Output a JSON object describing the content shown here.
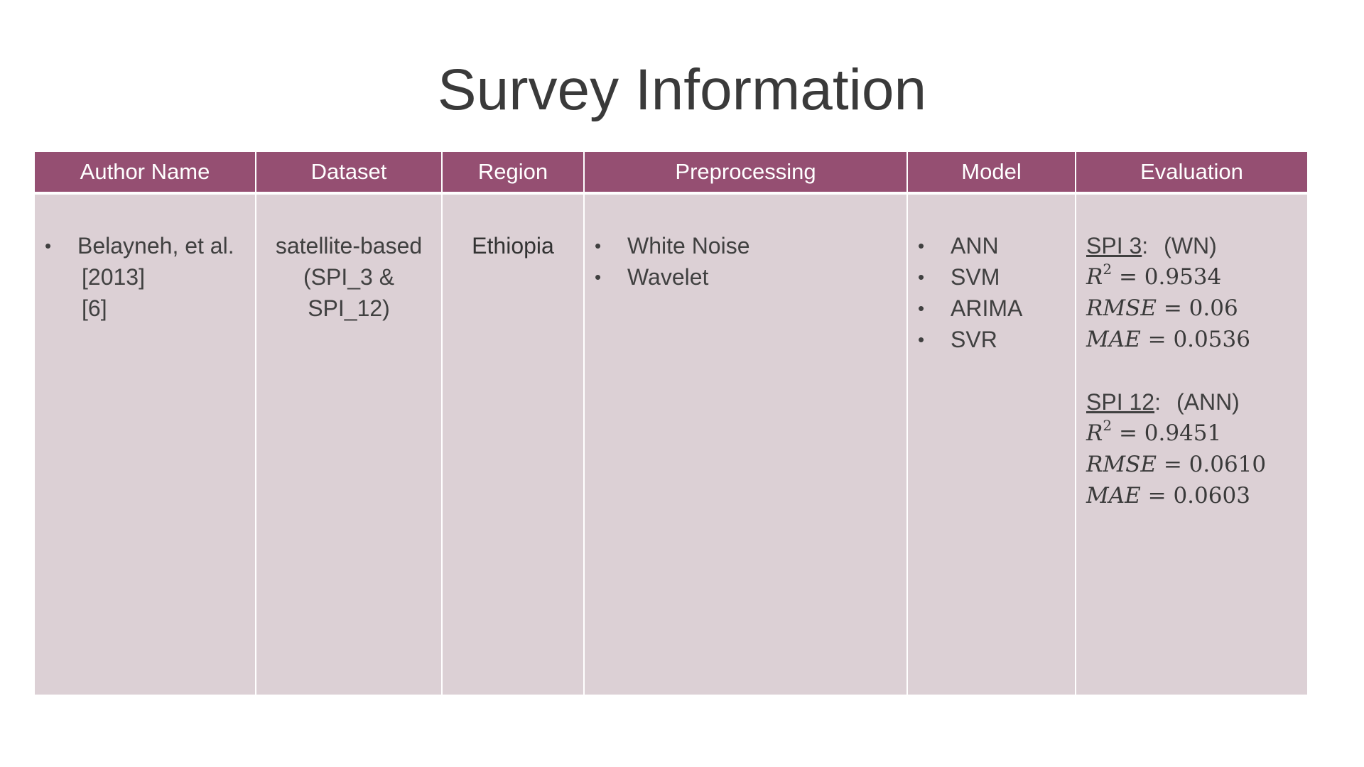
{
  "title": "Survey Information",
  "table": {
    "headers": [
      "Author Name",
      "Dataset",
      "Region",
      "Preprocessing",
      "Model",
      "Evaluation"
    ],
    "row": {
      "author": {
        "name": "Belayneh, et al.",
        "year": "[2013]",
        "ref": "[6]"
      },
      "dataset": [
        "satellite-based",
        "(SPI_3 &",
        "SPI_12)"
      ],
      "region": "Ethiopia",
      "preprocessing": [
        "White Noise",
        "Wavelet"
      ],
      "models": [
        "ANN",
        "SVM",
        "ARIMA",
        "SVR"
      ],
      "evaluation": [
        {
          "label": "SPI 3",
          "colon": ":",
          "method": "(WN)",
          "r2_var": "R",
          "r2_exp": "2",
          "r2_value": "= 0.9534",
          "rmse_var": "RMSE",
          "rmse_value": "= 0.06",
          "mae_var": "MAE",
          "mae_value": "= 0.0536"
        },
        {
          "label": "SPI 12",
          "colon": ":",
          "method": "(ANN)",
          "r2_var": "R",
          "r2_exp": "2",
          "r2_value": "= 0.9451",
          "rmse_var": "RMSE",
          "rmse_value": "= 0.0610",
          "mae_var": "MAE",
          "mae_value": "= 0.0603"
        }
      ]
    }
  },
  "colors": {
    "header_bg": "#954f72",
    "cell_bg": "#dcd0d5",
    "text": "#404040"
  }
}
